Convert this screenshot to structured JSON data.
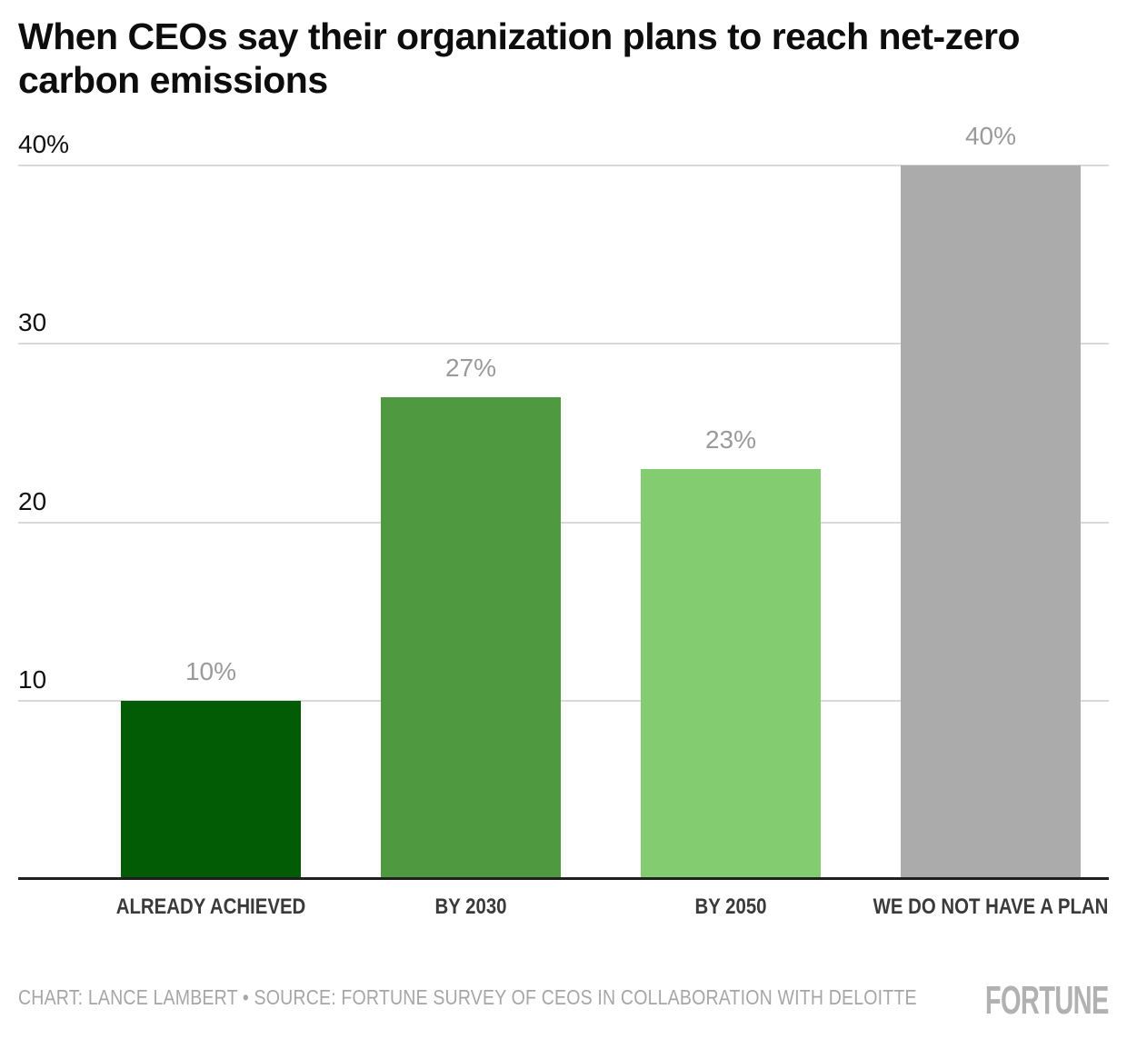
{
  "title": "When CEOs say their organization plans to reach net-zero carbon emissions",
  "footer": {
    "credit": "CHART: LANCE LAMBERT • SOURCE: FORTUNE SURVEY OF CEOS IN COLLABORATION WITH DELOITTE",
    "logo": "FORTUNE"
  },
  "colors": {
    "background": "#ffffff",
    "title": "#0d0d0d",
    "grid": "#d9d9d9",
    "axis": "#1f1f1f",
    "tick_label": "#111111",
    "data_label": "#9a9a9a",
    "category_label": "#3a3a3a",
    "footer_text": "#a6a6a6",
    "logo": "#b1b1b1"
  },
  "chart_data": {
    "type": "bar",
    "title": "When CEOs say their organization plans to reach net-zero carbon emissions",
    "categories": [
      "ALREADY ACHIEVED",
      "BY 2030",
      "BY 2050",
      "WE DO NOT HAVE A PLAN"
    ],
    "values": [
      10,
      27,
      23,
      40
    ],
    "data_labels": [
      "10%",
      "27%",
      "23%",
      "40%"
    ],
    "bar_colors": [
      "#015c05",
      "#4f9a41",
      "#83cd70",
      "#ababab"
    ],
    "xlabel": "",
    "ylabel": "",
    "ylim": [
      0,
      40
    ],
    "yticks": [
      {
        "label": "40%",
        "value": 40
      },
      {
        "label": "30",
        "value": 30
      },
      {
        "label": "20",
        "value": 20
      },
      {
        "label": "10",
        "value": 10
      }
    ],
    "grid": "horizontal",
    "legend": "none"
  }
}
